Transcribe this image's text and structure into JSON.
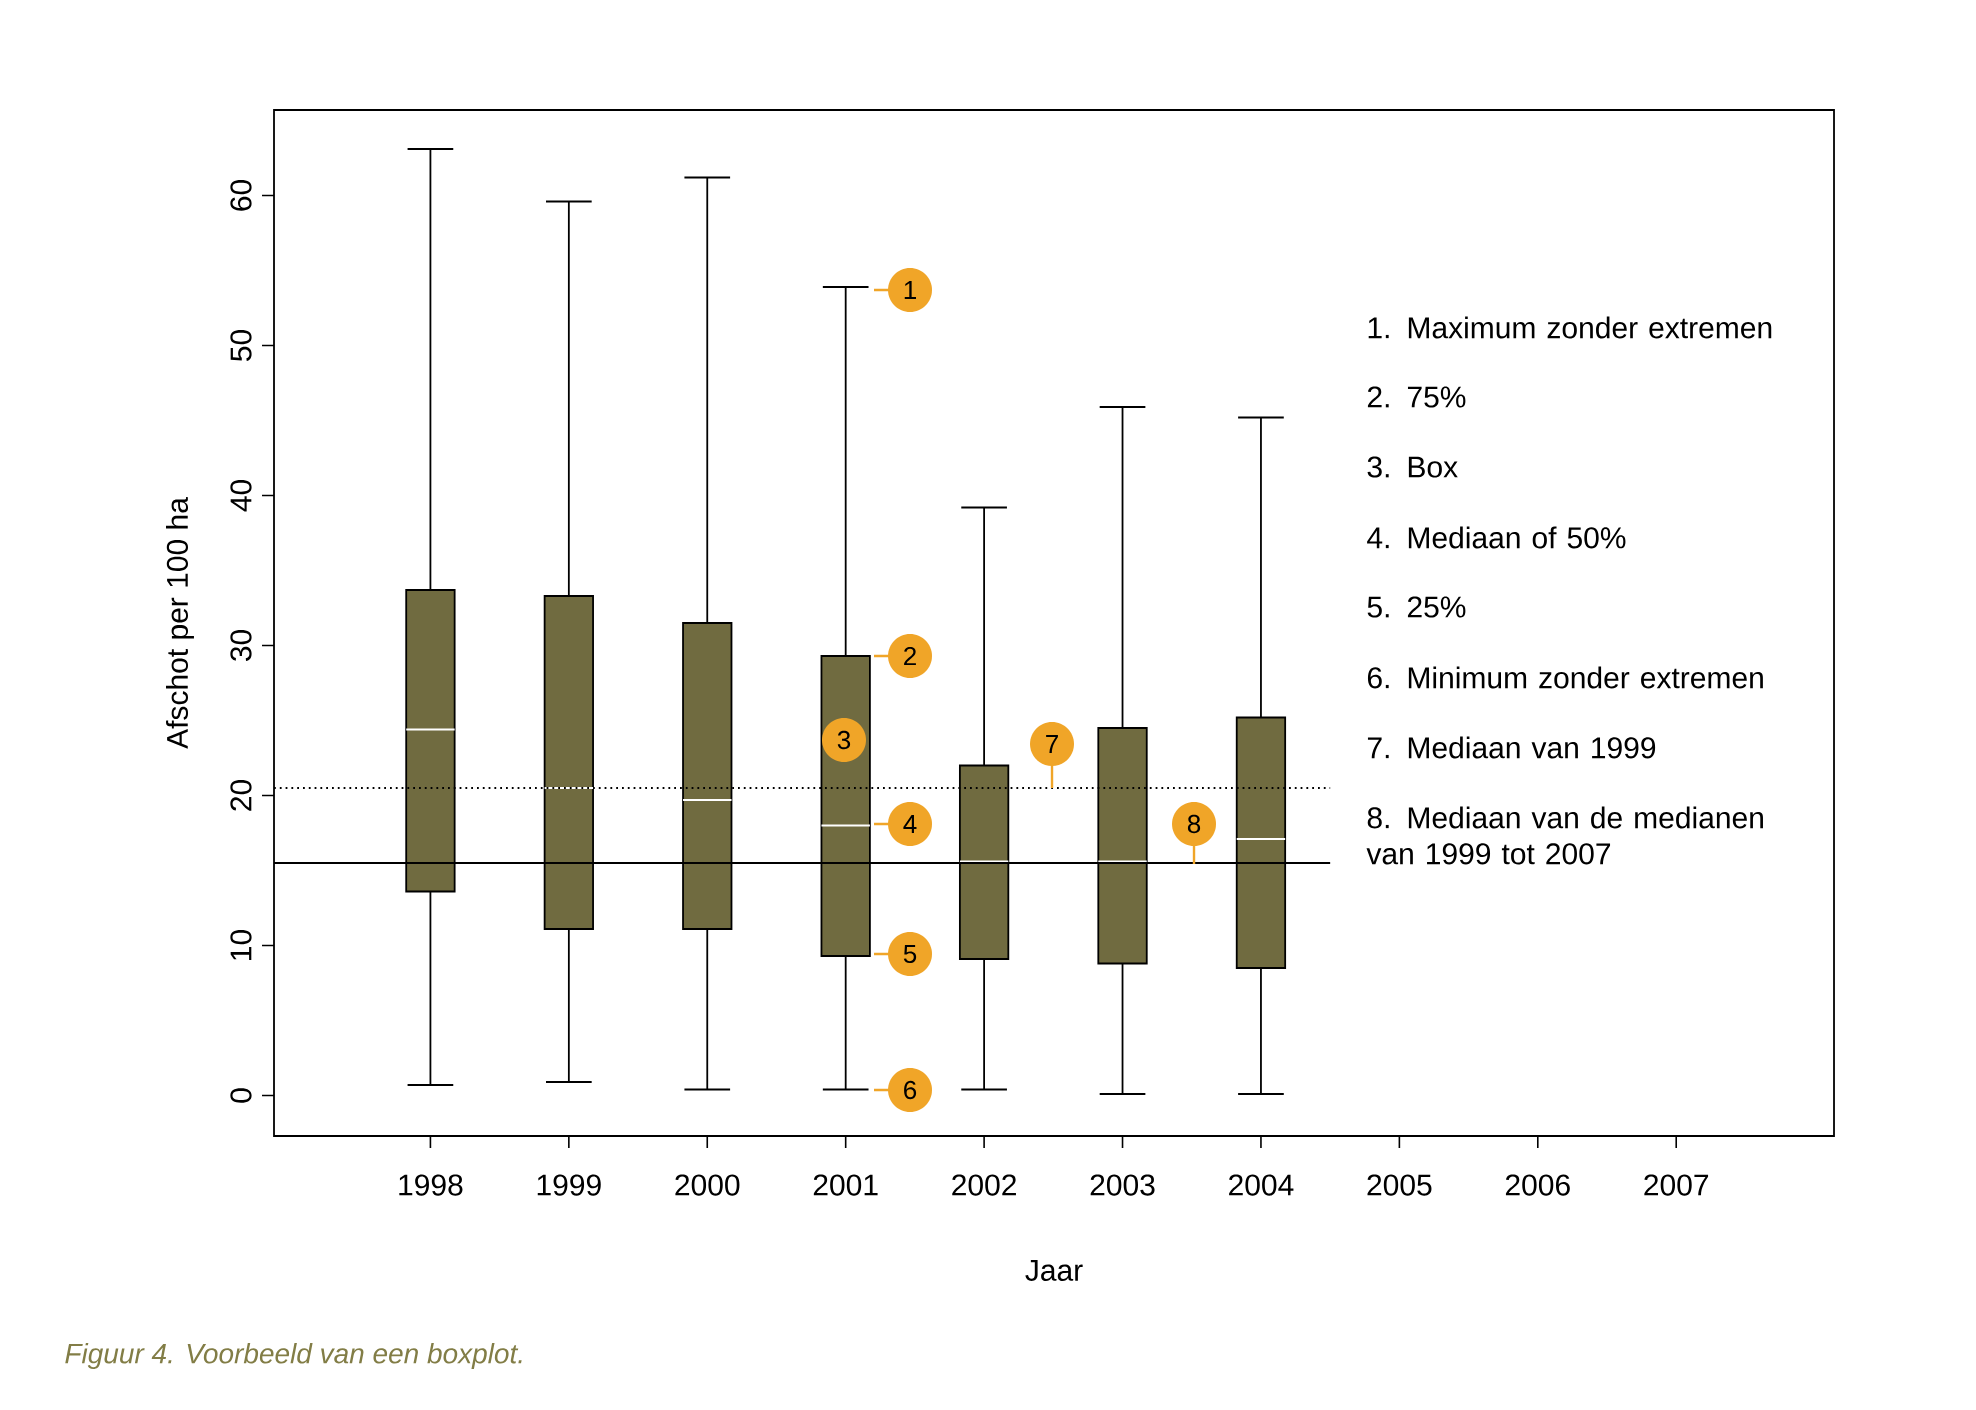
{
  "chart_data": {
    "type": "box",
    "xlabel": "Jaar",
    "ylabel": "Afschot per 100 ha",
    "categories": [
      "1998",
      "1999",
      "2000",
      "2001",
      "2002",
      "2003",
      "2004",
      "2005",
      "2006",
      "2007"
    ],
    "color": "#706b40",
    "boxes": [
      {
        "low": 0.7,
        "q1": 13.6,
        "median": 24.4,
        "q3": 33.7,
        "high": 63.1
      },
      {
        "low": 0.9,
        "q1": 11.1,
        "median": 20.5,
        "q3": 33.3,
        "high": 59.6
      },
      {
        "low": 0.4,
        "q1": 11.1,
        "median": 19.7,
        "q3": 31.5,
        "high": 61.2
      },
      {
        "low": 0.4,
        "q1": 9.3,
        "median": 18.0,
        "q3": 29.3,
        "high": 53.9
      },
      {
        "low": 0.4,
        "q1": 9.1,
        "median": 15.6,
        "q3": 22.0,
        "high": 39.2
      },
      {
        "low": 0.1,
        "q1": 8.8,
        "median": 15.6,
        "q3": 24.5,
        "high": 45.9
      },
      {
        "low": 0.1,
        "q1": 8.5,
        "median": 17.1,
        "q3": 25.2,
        "high": 45.2
      },
      null,
      null,
      null
    ],
    "ylim": [
      -2.7,
      65.7
    ],
    "yticks": [
      0,
      10,
      20,
      30,
      40,
      50,
      60
    ],
    "grid": false,
    "ref_lines": [
      {
        "axis": "y",
        "value": 20.5,
        "line_style": "dotted"
      },
      {
        "axis": "y",
        "value": 15.5,
        "line_style": "solid"
      }
    ],
    "annotations": [
      "1",
      "2",
      "3",
      "4",
      "5",
      "6",
      "7",
      "8",
      "1. Maximum zonder extremen",
      "2. 75%",
      "3. Box",
      "4. Mediaan of 50%",
      "5. 25%",
      "6. Minimum zonder extremen",
      "7. Mediaan van 1999",
      "8. Mediaan van de medianen van 1999 tot 2007",
      "Figuur 4. Voorbeeld van een boxplot."
    ]
  }
}
